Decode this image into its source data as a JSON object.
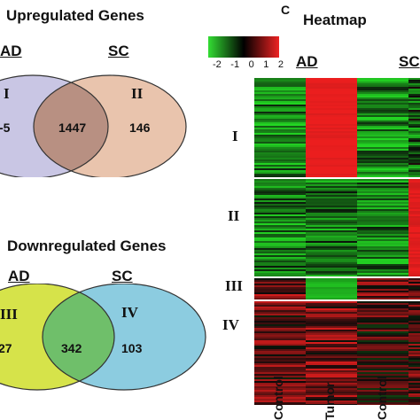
{
  "panels": {
    "up": {
      "title": "Upregulated Genes",
      "left_label": "AD",
      "right_label": "SC",
      "left_roman": "I",
      "right_roman": "II",
      "left_only": "-5",
      "overlap": "1447",
      "right_only": "146",
      "colors": {
        "left": "#c9c6e4",
        "right": "#e9c4ad",
        "overlap": "#b89082"
      }
    },
    "down": {
      "title": "Downregulated Genes",
      "left_label": "AD",
      "right_label": "SC",
      "left_roman": "III",
      "right_roman": "IV",
      "left_only": "27",
      "overlap": "342",
      "right_only": "103",
      "colors": {
        "left": "#d6e34a",
        "right": "#8ccce0",
        "overlap": "#6fbf6a"
      }
    },
    "heatmap": {
      "letter": "C",
      "title": "Heatmap",
      "scale_ticks": [
        "-2",
        "-1",
        "0",
        "1",
        "2"
      ],
      "group_ad": "AD",
      "group_sc": "SC",
      "clusters": [
        "I",
        "II",
        "III",
        "IV"
      ],
      "columns": [
        "Control",
        "Tumor",
        "Control"
      ]
    }
  }
}
